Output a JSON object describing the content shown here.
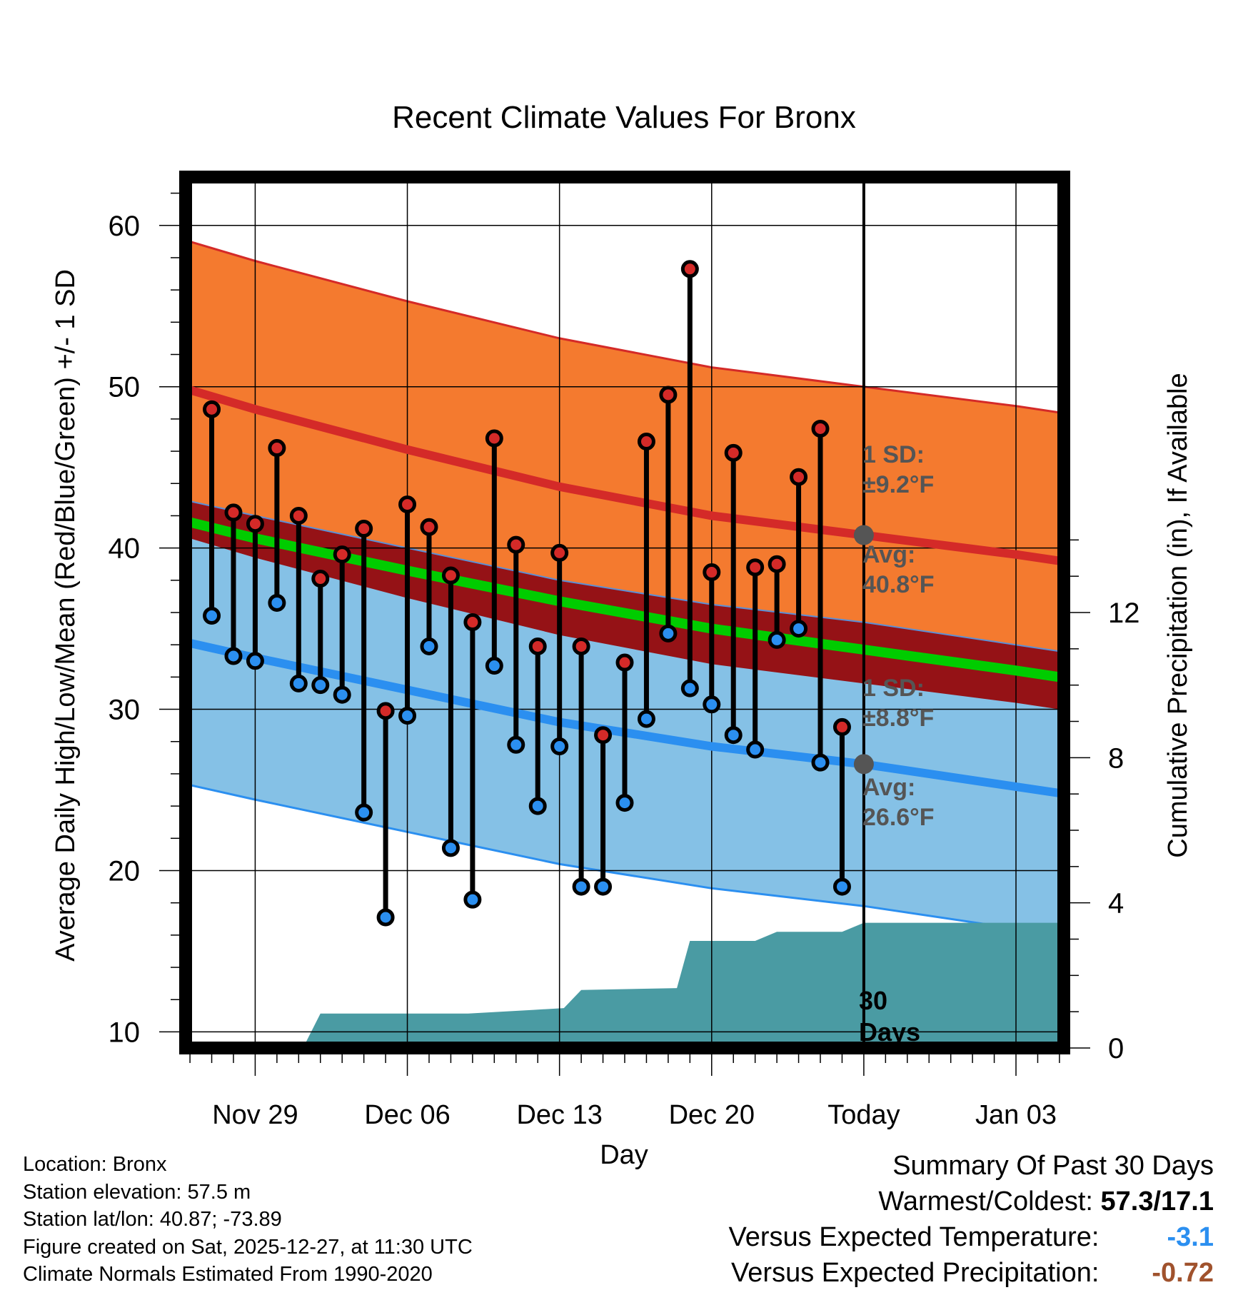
{
  "chart_data": {
    "type": "line",
    "title": "Recent Climate Values For Bronx",
    "xlabel": "Day",
    "ylabel": "Average Daily High/Low/Mean (Red/Blue/Green) +/- 1 SD",
    "y2label": "Cumulative Precipitation (in), If Available",
    "ylim": [
      9,
      63
    ],
    "y2lim": [
      0,
      24
    ],
    "xlim": [
      -3.2,
      37.2
    ],
    "yticks": [
      10,
      20,
      30,
      40,
      50,
      60
    ],
    "y2ticks": [
      0,
      4,
      8,
      12
    ],
    "xticks": [
      {
        "day": 0,
        "label": "Nov 29"
      },
      {
        "day": 7,
        "label": "Dec 06"
      },
      {
        "day": 14,
        "label": "Dec 13"
      },
      {
        "day": 21,
        "label": "Dec 20"
      },
      {
        "day": 28,
        "label": "Today"
      },
      {
        "day": 35,
        "label": "Jan 03"
      }
    ],
    "today_day": 28,
    "normals": {
      "days": [
        -3,
        0,
        7,
        14,
        21,
        28,
        35,
        37
      ],
      "high_mean": [
        49.8,
        48.6,
        46.1,
        43.8,
        42.0,
        40.8,
        39.6,
        39.2
      ],
      "high_sd": 9.2,
      "low_mean": [
        34.1,
        33.2,
        31.2,
        29.2,
        27.7,
        26.6,
        25.2,
        24.8
      ],
      "low_sd": 8.8,
      "mean": [
        41.6,
        40.6,
        38.6,
        36.7,
        35.0,
        33.7,
        32.4,
        32.0
      ]
    },
    "series": [
      {
        "name": "Daily High",
        "color": "#d42a28",
        "values": [
          48.6,
          42.2,
          41.5,
          46.2,
          42.0,
          38.1,
          39.6,
          41.2,
          29.9,
          42.7,
          41.3,
          38.3,
          35.4,
          46.8,
          40.2,
          33.9,
          39.7,
          33.9,
          28.4,
          32.9,
          46.6,
          49.5,
          57.3,
          38.5,
          45.9,
          38.8,
          39.0,
          44.4,
          47.4,
          28.9
        ]
      },
      {
        "name": "Daily Low",
        "color": "#2b8ff0",
        "values": [
          35.8,
          33.3,
          33.0,
          36.6,
          31.6,
          31.5,
          30.9,
          23.6,
          17.1,
          29.6,
          33.9,
          21.4,
          18.2,
          32.7,
          27.8,
          24.0,
          27.7,
          19.0,
          19.0,
          24.2,
          29.4,
          34.7,
          31.3,
          30.3,
          28.4,
          27.5,
          34.3,
          35.0,
          26.7,
          19.0
        ]
      }
    ],
    "day_offsets": [
      -2,
      -1,
      0,
      1,
      2,
      3,
      4,
      5,
      6,
      7,
      8,
      9,
      10,
      11,
      12,
      13,
      14,
      15,
      16,
      17,
      18,
      19,
      20,
      21,
      22,
      23,
      24,
      25,
      26,
      27
    ],
    "precipitation": {
      "days": [
        2.2,
        3.0,
        9.8,
        12.8,
        14.2,
        15.0,
        19.4,
        20.0,
        23.0,
        24.0,
        27.0,
        28.0,
        37.2
      ],
      "values": [
        0.0,
        0.95,
        0.95,
        1.05,
        1.1,
        1.6,
        1.65,
        2.95,
        2.95,
        3.2,
        3.2,
        3.45,
        3.45
      ]
    },
    "annotations": {
      "high_sd_label": "1 SD:",
      "high_sd_value": "±9.2°F",
      "high_avg_label": "Avg:",
      "high_avg_value": "40.8°F",
      "low_sd_label": "1 SD:",
      "low_sd_value": "±8.8°F",
      "low_avg_label": "Avg:",
      "low_avg_value": "26.6°F",
      "days_count": "30",
      "days_label": "Days"
    }
  },
  "footer": {
    "location": "Location: Bronx",
    "elevation": "Station elevation: 57.5 m",
    "latlon": "Station lat/lon: 40.87; -73.89",
    "created": "Figure created on Sat, 2025-12-27, at 11:30 UTC",
    "normals": "Climate Normals Estimated From 1990-2020"
  },
  "summary": {
    "title": "Summary Of Past 30 Days",
    "warmest_coldest_label": "Warmest/Coldest:",
    "warmest_coldest_value": "57.3/17.1",
    "temp_label": "Versus Expected Temperature:",
    "temp_value": "-3.1",
    "temp_color": "#2b8ff0",
    "precip_label": "Versus Expected Precipitation:",
    "precip_value": "-0.72",
    "precip_color": "#a0522d"
  },
  "colors": {
    "high_band": "#f47a2f",
    "high_line": "#d42a28",
    "low_band": "#85c1e6",
    "low_line": "#2b8ff0",
    "mean_line": "#00cc00",
    "overlap": "#951216",
    "precip": "#4a9ba3",
    "annotation": "#555555"
  }
}
